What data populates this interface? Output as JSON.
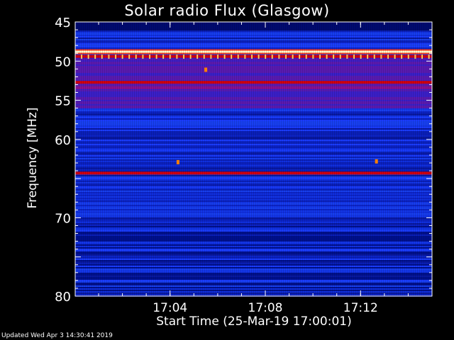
{
  "chart_data": {
    "type": "heatmap",
    "title": "Solar radio Flux (Glasgow)",
    "xlabel": "Start Time (25-Mar-19 17:00:01)",
    "ylabel": "Frequency [MHz]",
    "xlim": [
      "17:00:01",
      "17:15:00"
    ],
    "ylim": [
      45,
      80
    ],
    "y_ticks": [
      45,
      50,
      55,
      60,
      65,
      70,
      75,
      80
    ],
    "y_tick_labels": [
      "45",
      "50",
      "55",
      "60",
      "",
      "70",
      "",
      "80"
    ],
    "x_ticks": [
      "17:04",
      "17:08",
      "17:12"
    ],
    "colors": {
      "background": "#000000",
      "low": "#0010a0",
      "mid": "#1a3cff",
      "high": "#c00000",
      "peak": "#ffffc0"
    },
    "bright_bands_mhz": [
      {
        "freq": 48.8,
        "level": "saturated"
      },
      {
        "freq": 49.4,
        "level": "high"
      },
      {
        "freq": 52.7,
        "level": "high"
      },
      {
        "freq": 53.4,
        "level": "medium"
      },
      {
        "freq": 64.3,
        "level": "high"
      }
    ],
    "hotspots": [
      {
        "time": "17:05:30",
        "freq": 51.1
      },
      {
        "time": "17:04:20",
        "freq": 62.9
      },
      {
        "time": "17:12:40",
        "freq": 62.8
      }
    ]
  },
  "footer": {
    "updated": "Updated Wed Apr  3 14:30:41 2019"
  }
}
